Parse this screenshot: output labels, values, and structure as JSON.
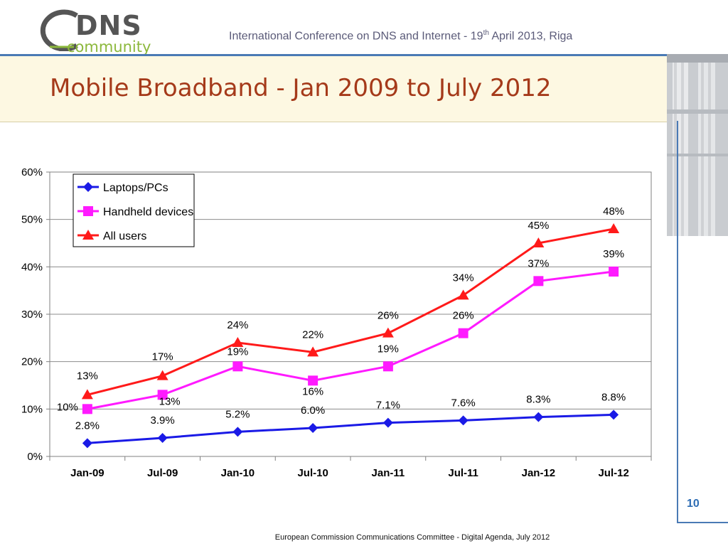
{
  "header": {
    "logo_top": "DNS",
    "logo_bottom": "community",
    "conference_pre": "International Conference on DNS and Internet  - 19",
    "conference_sup": "th",
    "conference_post": " April 2013, Riga"
  },
  "slide": {
    "title": "Mobile Broadband - Jan 2009 to July 2012",
    "page_number": "10",
    "footer": "European Commission Communications Committee  - Digital Agenda, July 2012"
  },
  "colors": {
    "laptops": "#1a1ae6",
    "handheld": "#ff1aff",
    "all_users": "#ff1a1a",
    "title": "#a53a1a",
    "accent": "#4a7ab5"
  },
  "chart_data": {
    "type": "line",
    "categories": [
      "Jan-09",
      "Jul-09",
      "Jan-10",
      "Jul-10",
      "Jan-11",
      "Jul-11",
      "Jan-12",
      "Jul-12"
    ],
    "ylim": [
      0,
      60
    ],
    "yticks": [
      "0%",
      "10%",
      "20%",
      "30%",
      "40%",
      "50%",
      "60%"
    ],
    "grid": true,
    "legend_position": "top-left",
    "series": [
      {
        "name": "Laptops/PCs",
        "marker": "diamond",
        "values": [
          2.8,
          3.9,
          5.2,
          6.0,
          7.1,
          7.6,
          8.3,
          8.8
        ],
        "labels": [
          "2.8%",
          "3.9%",
          "5.2%",
          "6.0%",
          "7.1%",
          "7.6%",
          "8.3%",
          "8.8%"
        ]
      },
      {
        "name": "Handheld devices",
        "marker": "square",
        "values": [
          10,
          13,
          19,
          16,
          19,
          26,
          37,
          39
        ],
        "labels": [
          "10%",
          "13%",
          "19%",
          "16%",
          "19%",
          "26%",
          "37%",
          "39%"
        ]
      },
      {
        "name": "All users",
        "marker": "triangle",
        "values": [
          13,
          17,
          24,
          22,
          26,
          34,
          45,
          48
        ],
        "labels": [
          "13%",
          "17%",
          "24%",
          "22%",
          "26%",
          "34%",
          "45%",
          "48%"
        ]
      }
    ]
  }
}
